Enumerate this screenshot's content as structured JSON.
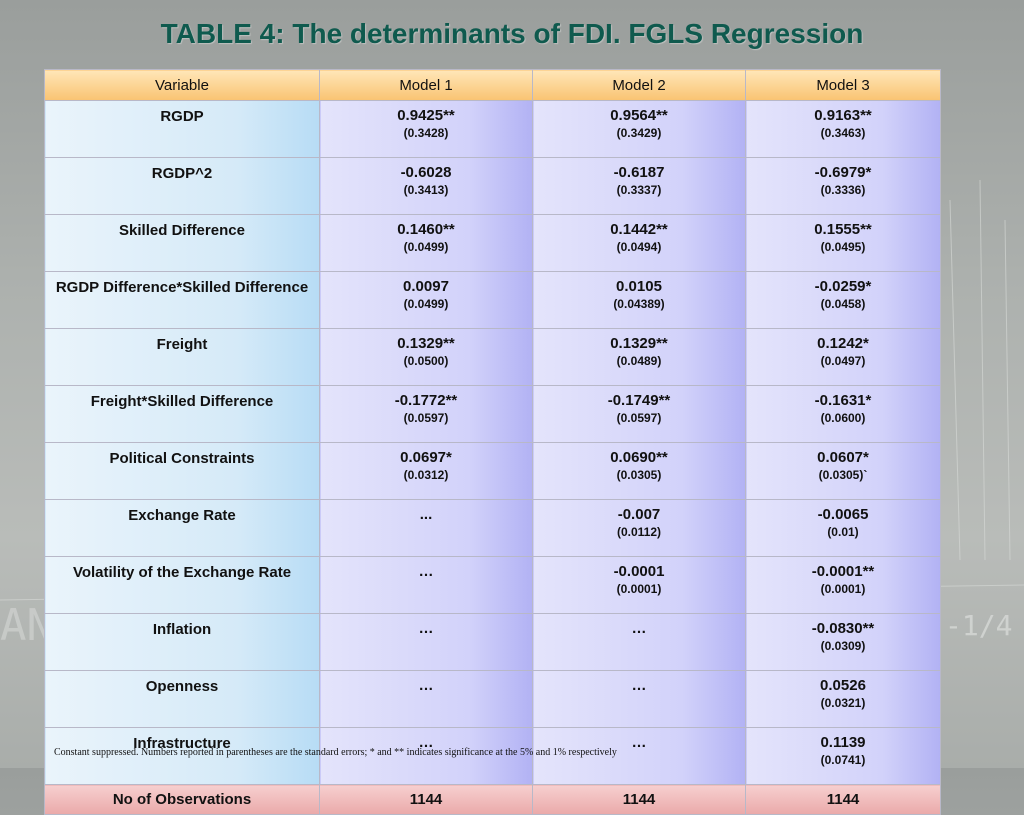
{
  "title": "TABLE 4: The determinants of FDI. FGLS Regression",
  "headers": [
    "Variable",
    "Model 1",
    "Model 2",
    "Model 3"
  ],
  "rows": [
    {
      "variable": "RGDP",
      "cells": [
        {
          "coef": "0.9425**",
          "se": "(0.3428)"
        },
        {
          "coef": "0.9564**",
          "se": "(0.3429)"
        },
        {
          "coef": "0.9163**",
          "se": "(0.3463)"
        }
      ]
    },
    {
      "variable": "RGDP^2",
      "cells": [
        {
          "coef": "-0.6028",
          "se": "(0.3413)"
        },
        {
          "coef": "-0.6187",
          "se": "(0.3337)"
        },
        {
          "coef": "-0.6979*",
          "se": "(0.3336)"
        }
      ]
    },
    {
      "variable": "Skilled Difference",
      "cells": [
        {
          "coef": "0.1460**",
          "se": "(0.0499)"
        },
        {
          "coef": "0.1442**",
          "se": "(0.0494)"
        },
        {
          "coef": "0.1555**",
          "se": "(0.0495)"
        }
      ]
    },
    {
      "variable": "RGDP Difference*Skilled Difference",
      "cells": [
        {
          "coef": "0.0097",
          "se": "(0.0499)"
        },
        {
          "coef": "0.0105",
          "se": "(0.04389)"
        },
        {
          "coef": "-0.0259*",
          "se": "(0.0458)"
        }
      ]
    },
    {
      "variable": "Freight",
      "cells": [
        {
          "coef": "0.1329**",
          "se": "(0.0500)"
        },
        {
          "coef": "0.1329**",
          "se": "(0.0489)"
        },
        {
          "coef": "0.1242*",
          "se": "(0.0497)"
        }
      ]
    },
    {
      "variable": "Freight*Skilled Difference",
      "cells": [
        {
          "coef": "-0.1772**",
          "se": "(0.0597)"
        },
        {
          "coef": "-0.1749**",
          "se": "(0.0597)"
        },
        {
          "coef": "-0.1631*",
          "se": "(0.0600)"
        }
      ]
    },
    {
      "variable": "Political Constraints",
      "cells": [
        {
          "coef": "0.0697*",
          "se": "(0.0312)"
        },
        {
          "coef": "0.0690**",
          "se": "(0.0305)"
        },
        {
          "coef": "0.0607*",
          "se": "(0.0305)`"
        }
      ]
    },
    {
      "variable": "Exchange Rate",
      "cells": [
        {
          "coef": "...",
          "se": ""
        },
        {
          "coef": "-0.007",
          "se": "(0.0112)"
        },
        {
          "coef": "-0.0065",
          "se": "(0.01)"
        }
      ]
    },
    {
      "variable": "Volatility of the Exchange Rate",
      "cells": [
        {
          "coef": "…",
          "se": ""
        },
        {
          "coef": "-0.0001",
          "se": "(0.0001)"
        },
        {
          "coef": "-0.0001**",
          "se": "(0.0001)"
        }
      ]
    },
    {
      "variable": "Inflation",
      "cells": [
        {
          "coef": "…",
          "se": ""
        },
        {
          "coef": "…",
          "se": ""
        },
        {
          "coef": "-0.0830**",
          "se": "(0.0309)"
        }
      ]
    },
    {
      "variable": "Openness",
      "cells": [
        {
          "coef": "…",
          "se": ""
        },
        {
          "coef": "…",
          "se": ""
        },
        {
          "coef": "0.0526",
          "se": "(0.0321)"
        }
      ]
    },
    {
      "variable": "Infrastructure",
      "cells": [
        {
          "coef": "…",
          "se": ""
        },
        {
          "coef": "…",
          "se": ""
        },
        {
          "coef": "0.1139",
          "se": "(0.0741)"
        }
      ]
    }
  ],
  "observations": {
    "label": "No of Observations",
    "values": [
      "1144",
      "1144",
      "1144"
    ]
  },
  "footnote": "Constant suppressed. Numbers reported in parentheses are the standard errors; * and ** indicates significance at the 5% and 1% respectively",
  "colors": {
    "title": "#0f5a4e",
    "header": "#f9c372",
    "variable_col": "#d5eaf8",
    "value_col": "#d2d2fa",
    "obs_row": "#eaa9a9"
  }
}
